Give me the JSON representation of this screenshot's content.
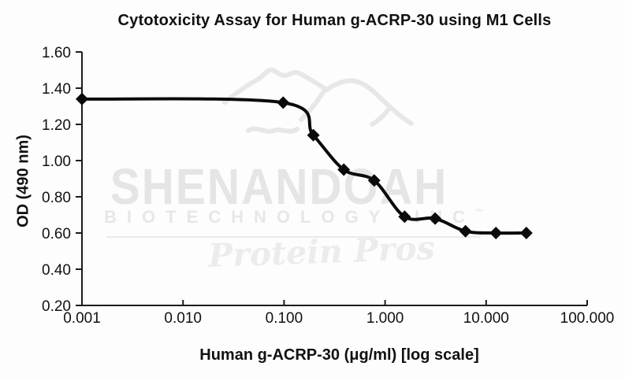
{
  "page": {
    "background": "#fdfdfd",
    "text_color": "#111111"
  },
  "chart_data": {
    "type": "line",
    "title": "Cytotoxicity Assay for Human g-ACRP-30 using M1 Cells",
    "xlabel": "Human g-ACRP-30 (μg/ml) [log scale]",
    "ylabel": "OD (490 nm)",
    "x_scale": "log",
    "xlim": [
      0.001,
      100
    ],
    "ylim": [
      0.2,
      1.6
    ],
    "grid": false,
    "legend": null,
    "x_ticks": {
      "values": [
        0.001,
        0.01,
        0.1,
        1,
        10,
        100
      ],
      "labels": [
        "0.001",
        "0.010",
        "0.100",
        "1.000",
        "10.000",
        "100.000"
      ]
    },
    "y_ticks": {
      "values": [
        0.2,
        0.4,
        0.6,
        0.8,
        1.0,
        1.2,
        1.4,
        1.6
      ],
      "labels": [
        "0.20",
        "0.40",
        "0.60",
        "0.80",
        "1.00",
        "1.20",
        "1.40",
        "1.60"
      ]
    },
    "series": [
      {
        "name": "OD 490 nm",
        "marker": "diamond",
        "color": "#0a0a0a",
        "x": [
          0.001,
          0.098,
          0.195,
          0.39,
          0.78,
          1.56,
          3.13,
          6.25,
          12.5,
          25
        ],
        "y": [
          1.34,
          1.32,
          1.14,
          0.95,
          0.89,
          0.69,
          0.68,
          0.61,
          0.6,
          0.6
        ]
      }
    ],
    "axis_color": "#1c1c1c"
  },
  "watermark": {
    "brand": "SHENANDOAH",
    "sub_brand": "BIOTECHNOLOGY INC",
    "trademark": "™",
    "tagline": "Protein Pros",
    "color": "#e7e7e7"
  }
}
